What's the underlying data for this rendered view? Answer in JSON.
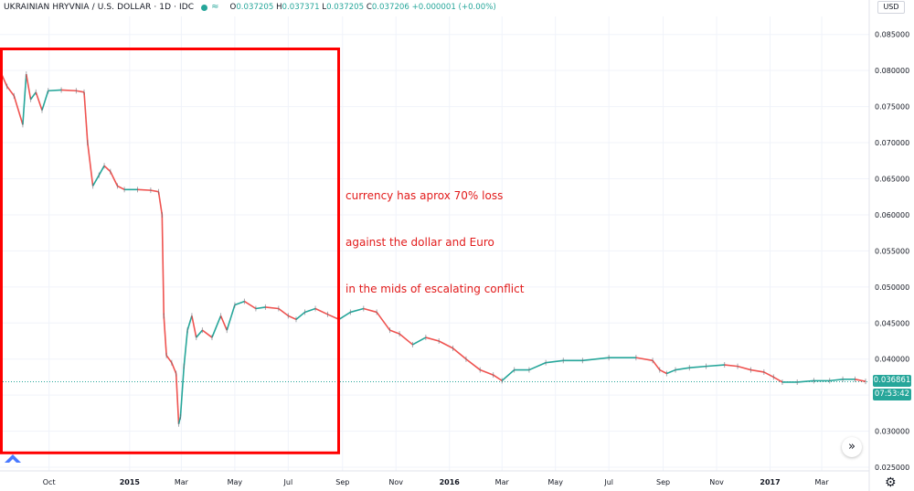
{
  "header": {
    "symbol_title": "UKRAINIAN HRYVNIA / U.S. DOLLAR · 1D · IDC",
    "open_label": "O",
    "open": "0.037205",
    "high_label": "H",
    "high": "0.037371",
    "low_label": "L",
    "low": "0.037205",
    "close_label": "C",
    "close": "0.037206",
    "change": "+0.000001 (+0.00%)"
  },
  "price_axis": {
    "currency": "USD"
  },
  "current_price": {
    "value": "0.036861",
    "countdown": "07:53:42"
  },
  "annotation": {
    "lines": [
      "currency has aprox 70% loss",
      "against the dollar and Euro",
      "in the mids of escalating conflict"
    ]
  },
  "controls": {
    "goto_label": "»"
  },
  "colors": {
    "up": "#26a69a",
    "down": "#ef5350",
    "highlight_box": "#ff0000",
    "annotation_text": "#e21b1b",
    "axis_text": "#131722"
  },
  "chart_data": {
    "type": "bar",
    "style": "ohlc-bars",
    "title": "UKRAINIAN HRYVNIA / U.S. DOLLAR · 1D · IDC",
    "ylabel": "USD",
    "ylim": [
      0.0245,
      0.0875
    ],
    "grid": true,
    "y_ticks": [
      "0.085000",
      "0.080000",
      "0.075000",
      "0.070000",
      "0.065000",
      "0.060000",
      "0.055000",
      "0.050000",
      "0.045000",
      "0.040000",
      "0.035000",
      "0.030000",
      "0.025000"
    ],
    "x_ticks": [
      {
        "label": "Oct",
        "date": "2014-10-01"
      },
      {
        "label": "2015",
        "date": "2015-01-01"
      },
      {
        "label": "Mar",
        "date": "2015-03-01"
      },
      {
        "label": "May",
        "date": "2015-05-01"
      },
      {
        "label": "Jul",
        "date": "2015-07-01"
      },
      {
        "label": "Sep",
        "date": "2015-09-01"
      },
      {
        "label": "Nov",
        "date": "2015-11-01"
      },
      {
        "label": "2016",
        "date": "2016-01-01"
      },
      {
        "label": "Mar",
        "date": "2016-03-01"
      },
      {
        "label": "May",
        "date": "2016-05-01"
      },
      {
        "label": "Jul",
        "date": "2016-07-01"
      },
      {
        "label": "Sep",
        "date": "2016-09-01"
      },
      {
        "label": "Nov",
        "date": "2016-11-01"
      },
      {
        "label": "2017",
        "date": "2017-01-01"
      },
      {
        "label": "Mar",
        "date": "2017-03-01"
      }
    ],
    "x_range": [
      "2014-08-06",
      "2017-04-20"
    ],
    "series": [
      {
        "values": [
          {
            "x": "2014-08-06",
            "y": 0.08
          },
          {
            "x": "2014-08-14",
            "y": 0.0778
          },
          {
            "x": "2014-08-22",
            "y": 0.0765
          },
          {
            "x": "2014-09-01",
            "y": 0.0725
          },
          {
            "x": "2014-09-05",
            "y": 0.0795
          },
          {
            "x": "2014-09-10",
            "y": 0.076
          },
          {
            "x": "2014-09-16",
            "y": 0.077
          },
          {
            "x": "2014-09-23",
            "y": 0.0745
          },
          {
            "x": "2014-09-30",
            "y": 0.0772
          },
          {
            "x": "2014-10-15",
            "y": 0.0773
          },
          {
            "x": "2014-11-01",
            "y": 0.0772
          },
          {
            "x": "2014-11-10",
            "y": 0.077
          },
          {
            "x": "2014-11-14",
            "y": 0.07
          },
          {
            "x": "2014-11-20",
            "y": 0.064
          },
          {
            "x": "2014-11-27",
            "y": 0.0655
          },
          {
            "x": "2014-12-03",
            "y": 0.0668
          },
          {
            "x": "2014-12-10",
            "y": 0.066
          },
          {
            "x": "2014-12-18",
            "y": 0.064
          },
          {
            "x": "2014-12-26",
            "y": 0.0635
          },
          {
            "x": "2015-01-10",
            "y": 0.0635
          },
          {
            "x": "2015-01-25",
            "y": 0.0634
          },
          {
            "x": "2015-02-03",
            "y": 0.0632
          },
          {
            "x": "2015-02-07",
            "y": 0.06
          },
          {
            "x": "2015-02-09",
            "y": 0.046
          },
          {
            "x": "2015-02-12",
            "y": 0.0405
          },
          {
            "x": "2015-02-18",
            "y": 0.0395
          },
          {
            "x": "2015-02-23",
            "y": 0.038
          },
          {
            "x": "2015-02-26",
            "y": 0.031
          },
          {
            "x": "2015-02-28",
            "y": 0.032
          },
          {
            "x": "2015-03-04",
            "y": 0.039
          },
          {
            "x": "2015-03-08",
            "y": 0.044
          },
          {
            "x": "2015-03-13",
            "y": 0.046
          },
          {
            "x": "2015-03-18",
            "y": 0.043
          },
          {
            "x": "2015-03-25",
            "y": 0.044
          },
          {
            "x": "2015-04-05",
            "y": 0.043
          },
          {
            "x": "2015-04-15",
            "y": 0.046
          },
          {
            "x": "2015-04-22",
            "y": 0.044
          },
          {
            "x": "2015-05-01",
            "y": 0.0475
          },
          {
            "x": "2015-05-12",
            "y": 0.048
          },
          {
            "x": "2015-05-25",
            "y": 0.047
          },
          {
            "x": "2015-06-05",
            "y": 0.0472
          },
          {
            "x": "2015-06-20",
            "y": 0.047
          },
          {
            "x": "2015-07-01",
            "y": 0.046
          },
          {
            "x": "2015-07-10",
            "y": 0.0455
          },
          {
            "x": "2015-07-20",
            "y": 0.0465
          },
          {
            "x": "2015-08-01",
            "y": 0.047
          },
          {
            "x": "2015-08-15",
            "y": 0.0462
          },
          {
            "x": "2015-08-28",
            "y": 0.0455
          },
          {
            "x": "2015-09-10",
            "y": 0.0465
          },
          {
            "x": "2015-09-25",
            "y": 0.047
          },
          {
            "x": "2015-10-10",
            "y": 0.0465
          },
          {
            "x": "2015-10-25",
            "y": 0.044
          },
          {
            "x": "2015-11-05",
            "y": 0.0435
          },
          {
            "x": "2015-11-20",
            "y": 0.042
          },
          {
            "x": "2015-12-05",
            "y": 0.043
          },
          {
            "x": "2015-12-20",
            "y": 0.0425
          },
          {
            "x": "2016-01-05",
            "y": 0.0415
          },
          {
            "x": "2016-01-20",
            "y": 0.04
          },
          {
            "x": "2016-02-05",
            "y": 0.0385
          },
          {
            "x": "2016-02-20",
            "y": 0.0378
          },
          {
            "x": "2016-03-01",
            "y": 0.037
          },
          {
            "x": "2016-03-15",
            "y": 0.0385
          },
          {
            "x": "2016-04-01",
            "y": 0.0385
          },
          {
            "x": "2016-04-20",
            "y": 0.0395
          },
          {
            "x": "2016-05-10",
            "y": 0.0398
          },
          {
            "x": "2016-06-01",
            "y": 0.0398
          },
          {
            "x": "2016-07-01",
            "y": 0.0402
          },
          {
            "x": "2016-08-01",
            "y": 0.0402
          },
          {
            "x": "2016-08-20",
            "y": 0.0398
          },
          {
            "x": "2016-08-28",
            "y": 0.0385
          },
          {
            "x": "2016-09-05",
            "y": 0.038
          },
          {
            "x": "2016-09-15",
            "y": 0.0385
          },
          {
            "x": "2016-10-01",
            "y": 0.0388
          },
          {
            "x": "2016-10-20",
            "y": 0.039
          },
          {
            "x": "2016-11-10",
            "y": 0.0392
          },
          {
            "x": "2016-11-25",
            "y": 0.039
          },
          {
            "x": "2016-12-10",
            "y": 0.0385
          },
          {
            "x": "2016-12-25",
            "y": 0.0382
          },
          {
            "x": "2017-01-05",
            "y": 0.0375
          },
          {
            "x": "2017-01-15",
            "y": 0.0368
          },
          {
            "x": "2017-02-01",
            "y": 0.0368
          },
          {
            "x": "2017-02-20",
            "y": 0.037
          },
          {
            "x": "2017-03-10",
            "y": 0.037
          },
          {
            "x": "2017-03-25",
            "y": 0.0372
          },
          {
            "x": "2017-04-08",
            "y": 0.0372
          },
          {
            "x": "2017-04-20",
            "y": 0.0369
          }
        ]
      }
    ],
    "reference_line": {
      "y": 0.036861
    },
    "highlight_range": {
      "x": [
        "2014-08-06",
        "2015-08-26"
      ],
      "y": [
        0.027,
        0.083
      ]
    }
  }
}
